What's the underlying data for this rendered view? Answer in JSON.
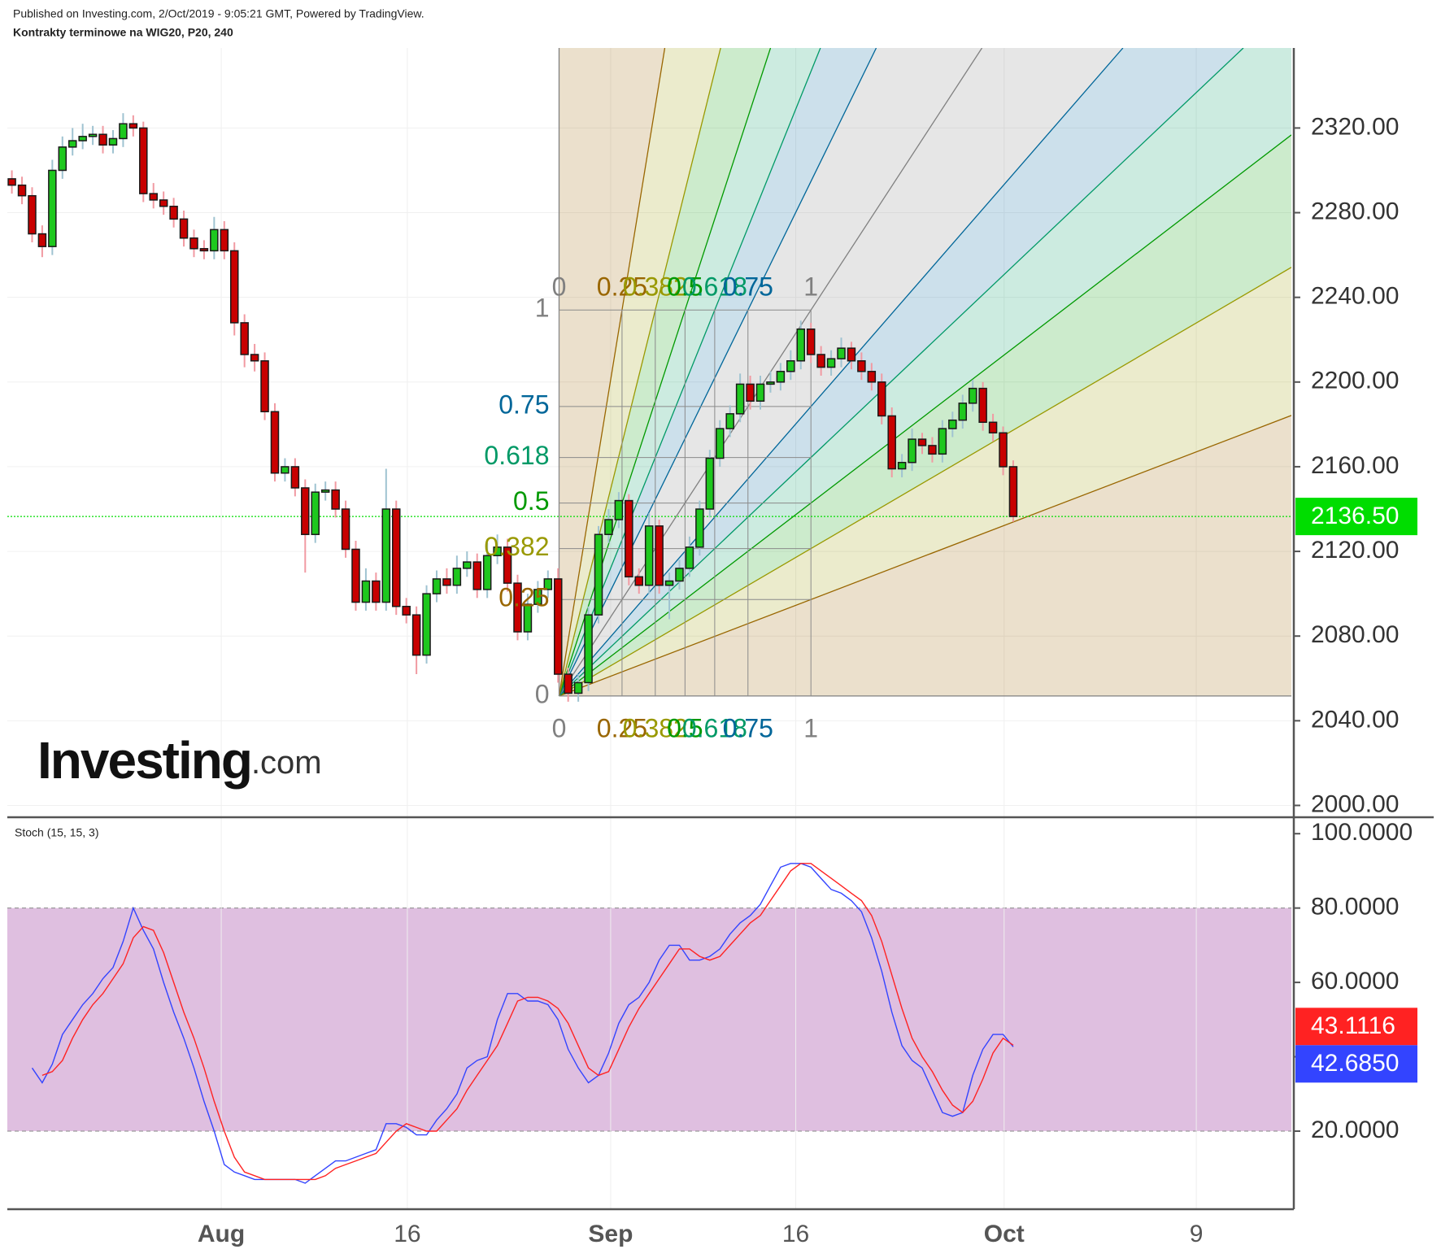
{
  "chart_data": [
    {
      "type": "candlestick",
      "source": "Published on Investing.com, 2/Oct/2019 - 9:05:21 GMT, Powered by TradingView.",
      "title": "Kontrakty terminowe na WIG20, P20, 240",
      "logo": {
        "brand": "Investing",
        "suffix": ".com"
      },
      "xlim": [
        -0.45,
        126.5
      ],
      "ylim": [
        1994.8,
        2357.8
      ],
      "yticks": [
        {
          "value": 2000,
          "label": "2000.00"
        },
        {
          "value": 2040,
          "label": "2040.00"
        },
        {
          "value": 2080,
          "label": "2080.00"
        },
        {
          "value": 2120,
          "label": "2120.00"
        },
        {
          "value": 2160,
          "label": "2160.00"
        },
        {
          "value": 2200,
          "label": "2200.00"
        },
        {
          "value": 2240,
          "label": "2240.00"
        },
        {
          "value": 2280,
          "label": "2280.00"
        },
        {
          "value": 2320,
          "label": "2320.00"
        }
      ],
      "grid": true,
      "up_color": "#1ec81e",
      "down_color": "#c80000",
      "wick_up_color": "#9fc3d1",
      "wick_down_color": "#f19aa2",
      "open": [
        2296,
        2293,
        2288,
        2270,
        2264,
        2300,
        2311,
        2314,
        2316,
        2317,
        2312,
        2315,
        2322,
        2320,
        2289,
        2286,
        2283,
        2277,
        2268,
        2263,
        2262,
        2272,
        2262,
        2228,
        2213,
        2210,
        2186,
        2157,
        2160,
        2150,
        2128,
        2148,
        2149,
        2140,
        2121,
        2096,
        2106,
        2096,
        2140,
        2094,
        2090,
        2071,
        2100,
        2107,
        2104,
        2112,
        2115,
        2102,
        2118,
        2122,
        2105,
        2082,
        2095,
        2102,
        2107,
        2062,
        2053,
        2058,
        2090,
        2128,
        2135,
        2144,
        2108,
        2104,
        2132,
        2104,
        2106,
        2112,
        2122,
        2140,
        2164,
        2178,
        2185,
        2199,
        2191,
        2199,
        2200,
        2205,
        2210,
        2225,
        2213,
        2207,
        2211,
        2216,
        2210,
        2205,
        2200,
        2184,
        2159,
        2162,
        2173,
        2170,
        2166,
        2178,
        2182,
        2190,
        2197,
        2181,
        2176,
        2160
      ],
      "high": [
        2300,
        2297,
        2292,
        2274,
        2305,
        2316,
        2320,
        2322,
        2321,
        2321,
        2319,
        2327,
        2326,
        2323,
        2294,
        2290,
        2287,
        2281,
        2272,
        2267,
        2278,
        2276,
        2266,
        2232,
        2218,
        2214,
        2190,
        2164,
        2164,
        2154,
        2152,
        2153,
        2153,
        2144,
        2125,
        2112,
        2110,
        2159,
        2144,
        2098,
        2094,
        2104,
        2111,
        2112,
        2118,
        2120,
        2119,
        2124,
        2128,
        2126,
        2109,
        2100,
        2106,
        2111,
        2112,
        2065,
        2062,
        2094,
        2132,
        2140,
        2148,
        2147,
        2112,
        2138,
        2135,
        2110,
        2116,
        2127,
        2144,
        2168,
        2182,
        2189,
        2204,
        2203,
        2203,
        2205,
        2209,
        2215,
        2229,
        2228,
        2217,
        2215,
        2221,
        2219,
        2214,
        2209,
        2204,
        2188,
        2166,
        2178,
        2176,
        2174,
        2182,
        2186,
        2194,
        2201,
        2200,
        2185,
        2179,
        2163
      ],
      "low": [
        2289,
        2284,
        2266,
        2259,
        2260,
        2296,
        2307,
        2310,
        2312,
        2308,
        2308,
        2311,
        2316,
        2285,
        2282,
        2279,
        2273,
        2264,
        2259,
        2258,
        2258,
        2258,
        2222,
        2207,
        2205,
        2182,
        2153,
        2153,
        2146,
        2110,
        2124,
        2144,
        2136,
        2117,
        2092,
        2092,
        2092,
        2092,
        2090,
        2086,
        2062,
        2067,
        2096,
        2100,
        2100,
        2108,
        2098,
        2098,
        2114,
        2101,
        2078,
        2078,
        2091,
        2098,
        2058,
        2049,
        2049,
        2054,
        2086,
        2124,
        2131,
        2104,
        2100,
        2100,
        2100,
        2088,
        2102,
        2108,
        2118,
        2136,
        2160,
        2174,
        2181,
        2187,
        2187,
        2195,
        2196,
        2201,
        2206,
        2209,
        2203,
        2203,
        2207,
        2206,
        2201,
        2196,
        2180,
        2155,
        2155,
        2158,
        2166,
        2162,
        2162,
        2174,
        2178,
        2186,
        2177,
        2172,
        2156,
        2134
      ],
      "close": [
        2293,
        2288,
        2270,
        2264,
        2300,
        2311,
        2314,
        2316,
        2317,
        2312,
        2315,
        2322,
        2320,
        2289,
        2286,
        2283,
        2277,
        2268,
        2263,
        2262,
        2272,
        2262,
        2228,
        2213,
        2210,
        2186,
        2157,
        2160,
        2150,
        2128,
        2148,
        2149,
        2140,
        2121,
        2096,
        2106,
        2096,
        2140,
        2094,
        2090,
        2071,
        2100,
        2107,
        2104,
        2112,
        2115,
        2102,
        2118,
        2122,
        2105,
        2082,
        2095,
        2102,
        2107,
        2062,
        2053,
        2058,
        2090,
        2128,
        2135,
        2144,
        2108,
        2104,
        2132,
        2104,
        2106,
        2112,
        2122,
        2140,
        2164,
        2178,
        2185,
        2199,
        2191,
        2199,
        2200,
        2205,
        2210,
        2225,
        2213,
        2207,
        2211,
        2216,
        2210,
        2205,
        2200,
        2184,
        2159,
        2162,
        2173,
        2170,
        2166,
        2178,
        2182,
        2190,
        2197,
        2181,
        2176,
        2160,
        2136.5
      ],
      "last_price": {
        "value": 2136.5,
        "label": "2136.50",
        "color": "#00dd00"
      },
      "gann_fan": {
        "x0": 54.1,
        "y0": 2051.7,
        "x1": 79,
        "y1": 2234,
        "levels": [
          0,
          0.25,
          0.382,
          0.5,
          0.618,
          0.75,
          1
        ],
        "colors": [
          "#808080",
          "#996600",
          "#999900",
          "#009900",
          "#009966",
          "#006699",
          "#808080"
        ]
      }
    },
    {
      "type": "line",
      "title": "Stoch (15, 15, 3)",
      "xlim": [
        -0.45,
        126.5
      ],
      "xticks": [
        {
          "value": 20.7,
          "label": "Aug"
        },
        {
          "value": 39.1,
          "label": "16"
        },
        {
          "value": 59.2,
          "label": "Sep"
        },
        {
          "value": 77.5,
          "label": "16"
        },
        {
          "value": 98.1,
          "label": "Oct"
        },
        {
          "value": 117.1,
          "label": "9"
        }
      ],
      "ylim": [
        -1,
        104.2
      ],
      "yticks": [
        {
          "value": 20,
          "label": "20.0000"
        },
        {
          "value": 40,
          "label": "40.0000"
        },
        {
          "value": 60,
          "label": "60.0000"
        },
        {
          "value": 80,
          "label": "80.0000"
        },
        {
          "value": 100,
          "label": "100.0000"
        }
      ],
      "band": [
        20,
        80
      ],
      "band_color": "#dfbfe0",
      "series": [
        {
          "name": "%K",
          "color": "#3344ff",
          "last_label": "42.6850",
          "values": [
            null,
            null,
            37,
            33,
            38,
            46,
            50,
            54,
            57,
            61,
            64,
            71,
            80,
            74,
            69,
            60,
            52,
            45,
            37,
            28,
            20,
            11,
            9,
            8,
            7,
            7,
            7,
            7,
            7,
            6,
            8,
            10,
            12,
            12,
            13,
            14,
            15,
            22,
            22,
            21,
            19,
            19,
            23,
            26,
            30,
            37,
            39,
            40,
            50,
            57,
            57,
            55,
            55,
            54,
            50,
            42,
            37,
            33,
            35,
            41,
            49,
            54,
            56,
            60,
            66,
            70,
            70,
            66,
            66,
            67,
            69,
            73,
            76,
            78,
            81,
            86,
            91,
            92,
            92,
            91,
            88,
            85,
            84,
            82,
            79,
            72,
            63,
            52,
            43,
            39,
            37,
            31,
            25,
            24,
            25,
            35,
            42,
            46,
            46,
            42.685
          ]
        },
        {
          "name": "%D",
          "color": "#ff2222",
          "last_label": "43.1116",
          "values": [
            null,
            null,
            null,
            35,
            36,
            39,
            45,
            50,
            54,
            57,
            61,
            65,
            72,
            75,
            74,
            68,
            60,
            52,
            45,
            37,
            28,
            20,
            13,
            9,
            8,
            7,
            7,
            7,
            7,
            7,
            7,
            8,
            10,
            11,
            12,
            13,
            14,
            17,
            20,
            22,
            21,
            20,
            20,
            23,
            26,
            31,
            35,
            39,
            43,
            49,
            55,
            56,
            56,
            55,
            53,
            49,
            43,
            37,
            35,
            36,
            42,
            48,
            53,
            57,
            61,
            65,
            69,
            69,
            67,
            66,
            67,
            70,
            73,
            76,
            78,
            82,
            86,
            90,
            92,
            92,
            90,
            88,
            86,
            84,
            82,
            78,
            71,
            62,
            53,
            45,
            40,
            36,
            31,
            27,
            25,
            28,
            34,
            41,
            45,
            43.1116
          ]
        }
      ]
    }
  ]
}
